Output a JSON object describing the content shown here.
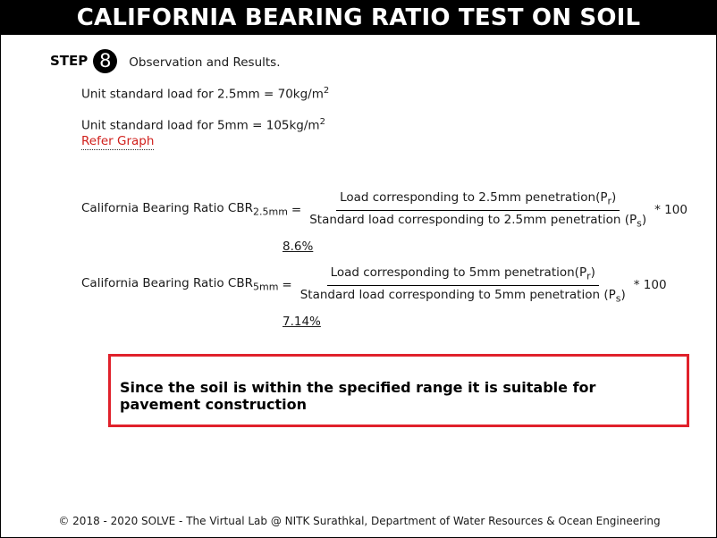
{
  "title": "CALIFORNIA BEARING RATIO TEST ON SOIL",
  "step": {
    "word": "STEP",
    "number": "8",
    "description": "Observation and Results."
  },
  "standard_loads": {
    "load_25_text": "Unit standard load for 2.5mm = 70kg/m",
    "load_25_sup": "2",
    "load_5_text": "Unit standard load for 5mm = 105kg/m",
    "load_5_sup": "2",
    "refer_link": "Refer Graph"
  },
  "cbr_25": {
    "label": "California Bearing Ratio CBR",
    "label_sub": "2.5mm",
    "equals": "=",
    "numerator": "Load corresponding to 2.5mm penetration(P",
    "numerator_sub": "r",
    "numerator_end": ")",
    "denominator": "Standard load corresponding to 2.5mm penetration (P",
    "denominator_sub": "s",
    "denominator_end": ")",
    "multiplier": "* 100",
    "result": "8.6%"
  },
  "cbr_5": {
    "label": "California Bearing Ratio CBR",
    "label_sub": "5mm",
    "equals": "=",
    "numerator": "Load corresponding to 5mm penetration(P",
    "numerator_sub": "r",
    "numerator_end": ")",
    "denominator": "Standard load corresponding to 5mm penetration (P",
    "denominator_sub": "s",
    "denominator_end": ")",
    "multiplier": "* 100",
    "result": "7.14%"
  },
  "conclusion": "Since the soil is within the specified range it is suitable for pavement construction",
  "footer": "© 2018 - 2020 SOLVE - The Virtual Lab @ NITK Surathkal, Department of Water Resources & Ocean Engineering",
  "colors": {
    "title_bg": "#000000",
    "link": "#d0201c",
    "result_border": "#e0212b"
  }
}
